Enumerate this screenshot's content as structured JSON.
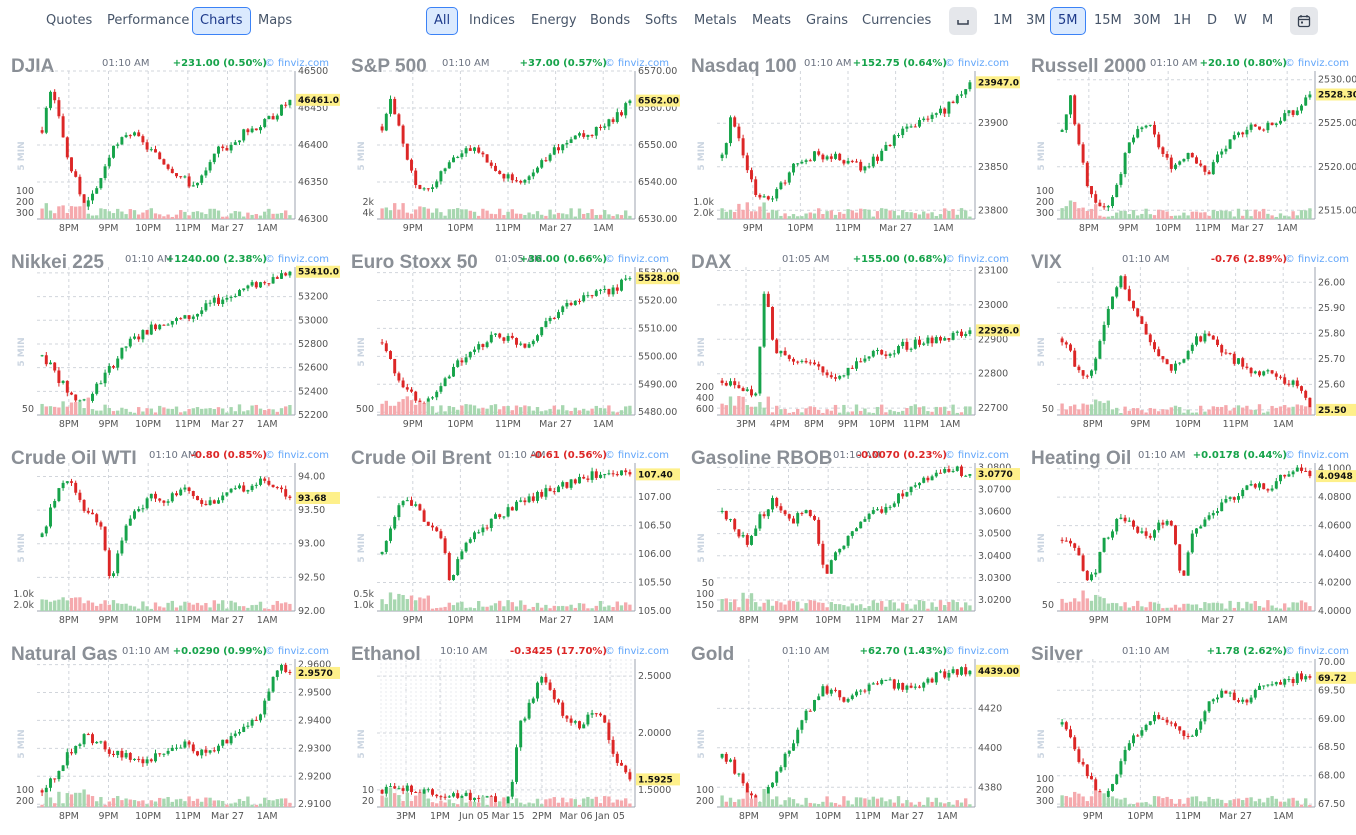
{
  "nav": {
    "left": [
      "Quotes",
      "Performance",
      "Charts",
      "Maps"
    ],
    "left_active": "Charts",
    "categories": [
      "All",
      "Indices",
      "Energy",
      "Bonds",
      "Softs",
      "Metals",
      "Meats",
      "Grains",
      "Currencies"
    ],
    "categories_active": "All",
    "timeframes": [
      "1M",
      "3M",
      "5M",
      "15M",
      "30M",
      "1H",
      "D",
      "W",
      "M"
    ],
    "timeframe_active": "5M",
    "icons": [
      "candle-toggle-icon",
      "calendar-icon"
    ]
  },
  "colors": {
    "up": "#16a34a",
    "down": "#dc2626",
    "volume_up": "#a7d7b0",
    "volume_down": "#f5a9ad",
    "last_bg": "#fef08a",
    "accent": "#3b82f6"
  },
  "source_label": "© finviz.com",
  "interval_label": "5 MIN",
  "charts": [
    {
      "title": "DJIA",
      "time": "01:10 AM",
      "change": "+231.00 (0.50%)",
      "dir": "up",
      "last": "46461.0",
      "y_ticks": [
        "46500",
        "46450",
        "46400",
        "46350",
        "46300"
      ],
      "ymin": 46300,
      "ymax": 46500,
      "vol_ticks": [
        "300",
        "200",
        "100"
      ],
      "x_ticks": [
        "8PM",
        "9PM",
        "10PM",
        "11PM",
        "Mar 27",
        "1AM"
      ],
      "path": [
        46420,
        46470,
        46440,
        46380,
        46350,
        46320,
        46330,
        46360,
        46390,
        46400,
        46420,
        46410,
        46400,
        46390,
        46380,
        46370,
        46360,
        46350,
        46345,
        46360,
        46380,
        46400,
        46395,
        46410,
        46420,
        46425,
        46430,
        46440,
        46450,
        46461
      ]
    },
    {
      "title": "S&P 500",
      "time": "01:10 AM",
      "change": "+37.00 (0.57%)",
      "dir": "up",
      "last": "6562.00",
      "y_ticks": [
        "6570.00",
        "6560.00",
        "6550.00",
        "6540.00",
        "6530.00"
      ],
      "ymin": 6530,
      "ymax": 6570,
      "vol_ticks": [
        "4k",
        "2k"
      ],
      "x_ticks": [
        "9PM",
        "10PM",
        "11PM",
        "Mar 27",
        "1AM"
      ],
      "path": [
        6555,
        6562,
        6555,
        6545,
        6540,
        6537,
        6540,
        6543,
        6546,
        6548,
        6550,
        6548,
        6546,
        6544,
        6542,
        6541,
        6540,
        6542,
        6544,
        6546,
        6548,
        6550,
        6551,
        6552,
        6553,
        6554,
        6555,
        6557,
        6559,
        6562
      ]
    },
    {
      "title": "Nasdaq 100",
      "time": "01:10 AM",
      "change": "+152.75 (0.64%)",
      "dir": "up",
      "last": "23947.0",
      "y_ticks": [
        "23900",
        "23850",
        "23800"
      ],
      "ymin": 23790,
      "ymax": 23960,
      "vol_ticks": [
        "2.0k",
        "1.0k"
      ],
      "x_ticks": [
        "9PM",
        "10PM",
        "11PM",
        "Mar 27",
        "1AM"
      ],
      "path": [
        23860,
        23905,
        23880,
        23840,
        23820,
        23812,
        23818,
        23830,
        23845,
        23855,
        23860,
        23865,
        23860,
        23862,
        23858,
        23855,
        23850,
        23852,
        23860,
        23870,
        23880,
        23890,
        23895,
        23900,
        23905,
        23910,
        23915,
        23925,
        23935,
        23947
      ]
    },
    {
      "title": "Russell 2000",
      "time": "01:10 AM",
      "change": "+20.10 (0.80%)",
      "dir": "up",
      "last": "2528.30",
      "y_ticks": [
        "2530.00",
        "2525.00",
        "2520.00",
        "2515.00"
      ],
      "ymin": 2514,
      "ymax": 2531,
      "vol_ticks": [
        "300",
        "200",
        "100"
      ],
      "x_ticks": [
        "8PM",
        "9PM",
        "10PM",
        "11PM",
        "Mar 27",
        "1AM"
      ],
      "path": [
        2524,
        2528,
        2522,
        2518,
        2516,
        2515,
        2517,
        2520,
        2523,
        2524,
        2525,
        2523,
        2521,
        2520,
        2521,
        2522,
        2520,
        2519,
        2521,
        2522,
        2523,
        2524,
        2525,
        2524,
        2525,
        2525,
        2526,
        2526,
        2527,
        2528.3
      ]
    },
    {
      "title": "Nikkei 225",
      "time": "01:10 AM",
      "change": "+1240.00 (2.38%)",
      "dir": "up",
      "last": "53410.0",
      "y_ticks": [
        "53400",
        "53200",
        "53000",
        "52800",
        "52600",
        "52400",
        "52200"
      ],
      "ymin": 52200,
      "ymax": 53450,
      "vol_ticks": [
        "50"
      ],
      "x_ticks": [
        "8PM",
        "9PM",
        "10PM",
        "11PM",
        "Mar 27",
        "1AM"
      ],
      "path": [
        52700,
        52620,
        52500,
        52400,
        52330,
        52320,
        52400,
        52500,
        52600,
        52700,
        52800,
        52850,
        52900,
        52950,
        52980,
        53000,
        53000,
        53020,
        53050,
        53100,
        53150,
        53180,
        53200,
        53250,
        53280,
        53300,
        53330,
        53360,
        53380,
        53410
      ]
    },
    {
      "title": "Euro Stoxx 50",
      "time": "01:05 AM",
      "change": "+36.00 (0.66%)",
      "dir": "up",
      "last": "5528.00",
      "y_ticks": [
        "5530.00",
        "5520.00",
        "5510.00",
        "5500.00",
        "5490.00",
        "5480.00"
      ],
      "ymin": 5479,
      "ymax": 5532,
      "vol_ticks": [
        "500"
      ],
      "x_ticks": [
        "9PM",
        "10PM",
        "11PM",
        "Mar 27",
        "1AM"
      ],
      "path": [
        5505,
        5498,
        5492,
        5488,
        5484,
        5482,
        5486,
        5490,
        5495,
        5498,
        5500,
        5502,
        5505,
        5508,
        5507,
        5506,
        5505,
        5504,
        5508,
        5512,
        5515,
        5517,
        5519,
        5520,
        5521,
        5522,
        5523,
        5524,
        5526,
        5528
      ]
    },
    {
      "title": "DAX",
      "time": "01:05 AM",
      "change": "+155.00 (0.68%)",
      "dir": "up",
      "last": "22926.0",
      "y_ticks": [
        "23100",
        "23000",
        "22900",
        "22800",
        "22700"
      ],
      "ymin": 22680,
      "ymax": 23110,
      "vol_ticks": [
        "600",
        "400",
        "200"
      ],
      "x_ticks": [
        "3PM",
        "4PM",
        "8PM",
        "9PM",
        "10PM",
        "11PM",
        "1AM"
      ],
      "path": [
        22780,
        22770,
        22760,
        22750,
        22740,
        23060,
        22880,
        22860,
        22850,
        22840,
        22830,
        22820,
        22800,
        22790,
        22800,
        22820,
        22840,
        22850,
        22860,
        22860,
        22870,
        22880,
        22880,
        22890,
        22895,
        22900,
        22905,
        22910,
        22918,
        22926
      ]
    },
    {
      "title": "VIX",
      "time": "01:10 AM",
      "change": "-0.76 (2.89%)",
      "dir": "down",
      "last": "25.50",
      "y_ticks": [
        "26.00",
        "25.90",
        "25.80",
        "25.70",
        "25.60",
        "25.50"
      ],
      "ymin": 25.48,
      "ymax": 26.06,
      "vol_ticks": [
        "50"
      ],
      "x_ticks": [
        "8PM",
        "9PM",
        "10PM",
        "11PM",
        "1AM"
      ],
      "path": [
        25.78,
        25.72,
        25.65,
        25.62,
        25.7,
        25.85,
        25.95,
        26.02,
        25.92,
        25.85,
        25.78,
        25.72,
        25.68,
        25.66,
        25.7,
        25.75,
        25.78,
        25.8,
        25.76,
        25.72,
        25.7,
        25.68,
        25.66,
        25.65,
        25.64,
        25.63,
        25.62,
        25.6,
        25.58,
        25.5
      ]
    },
    {
      "title": "Crude Oil WTI",
      "time": "01:10 AM",
      "change": "-0.80 (0.85%)",
      "dir": "down",
      "last": "93.68",
      "y_ticks": [
        "94.00",
        "93.50",
        "93.00",
        "92.50",
        "92.00"
      ],
      "ymin": 92.0,
      "ymax": 94.2,
      "vol_ticks": [
        "2.0k",
        "1.0k"
      ],
      "x_ticks": [
        "8PM",
        "9PM",
        "10PM",
        "11PM",
        "Mar 27",
        "1AM"
      ],
      "path": [
        93.1,
        93.5,
        93.8,
        94.0,
        93.7,
        93.5,
        93.4,
        93.3,
        92.4,
        93.0,
        93.3,
        93.5,
        93.6,
        93.7,
        93.65,
        93.7,
        93.75,
        93.8,
        93.7,
        93.6,
        93.65,
        93.7,
        93.75,
        93.8,
        93.85,
        93.9,
        93.92,
        93.9,
        93.8,
        93.68
      ]
    },
    {
      "title": "Crude Oil Brent",
      "time": "01:10 AM",
      "change": "-0.61 (0.56%)",
      "dir": "down",
      "last": "107.40",
      "y_ticks": [
        "107.00",
        "106.50",
        "106.00",
        "105.50",
        "105.00"
      ],
      "ymin": 105.0,
      "ymax": 107.6,
      "vol_ticks": [
        "1.0k",
        "0.5k"
      ],
      "x_ticks": [
        "9PM",
        "10PM",
        "11PM",
        "Mar 27",
        "1AM"
      ],
      "path": [
        106.0,
        106.4,
        106.8,
        107.0,
        106.8,
        106.6,
        106.4,
        106.3,
        105.4,
        106.0,
        106.2,
        106.4,
        106.5,
        106.6,
        106.7,
        106.8,
        106.9,
        107.0,
        107.0,
        107.1,
        107.15,
        107.2,
        107.25,
        107.3,
        107.35,
        107.4,
        107.45,
        107.45,
        107.42,
        107.4
      ]
    },
    {
      "title": "Gasoline RBOB",
      "time": "01:10 AM",
      "change": "-0.0070 (0.23%)",
      "dir": "down",
      "last": "3.0770",
      "y_ticks": [
        "3.0800",
        "3.0700",
        "3.0600",
        "3.0500",
        "3.0400",
        "3.0300",
        "3.0200"
      ],
      "ymin": 3.015,
      "ymax": 3.082,
      "vol_ticks": [
        "150",
        "100",
        "50"
      ],
      "x_ticks": [
        "8PM",
        "9PM",
        "10PM",
        "11PM",
        "Mar 27",
        "1AM"
      ],
      "path": [
        3.06,
        3.055,
        3.05,
        3.045,
        3.055,
        3.06,
        3.065,
        3.06,
        3.055,
        3.058,
        3.06,
        3.055,
        3.03,
        3.04,
        3.045,
        3.05,
        3.055,
        3.058,
        3.06,
        3.062,
        3.065,
        3.068,
        3.07,
        3.072,
        3.075,
        3.076,
        3.078,
        3.079,
        3.078,
        3.077
      ]
    },
    {
      "title": "Heating Oil",
      "time": "01:10 AM",
      "change": "+0.0178 (0.44%)",
      "dir": "up",
      "last": "4.0948",
      "y_ticks": [
        "4.1000",
        "4.0800",
        "4.0600",
        "4.0400",
        "4.0200",
        "4.0000"
      ],
      "ymin": 4.0,
      "ymax": 4.104,
      "vol_ticks": [
        "50"
      ],
      "x_ticks": [
        "9PM",
        "10PM",
        "Mar 27",
        "1AM"
      ],
      "path": [
        4.05,
        4.045,
        4.04,
        4.02,
        4.03,
        4.05,
        4.06,
        4.065,
        4.06,
        4.055,
        4.05,
        4.058,
        4.065,
        4.06,
        4.02,
        4.05,
        4.06,
        4.065,
        4.07,
        4.075,
        4.08,
        4.085,
        4.088,
        4.09,
        4.085,
        4.09,
        4.095,
        4.098,
        4.1,
        4.0948
      ]
    },
    {
      "title": "Natural Gas",
      "time": "01:10 AM",
      "change": "+0.0290 (0.99%)",
      "dir": "up",
      "last": "2.9570",
      "y_ticks": [
        "2.9600",
        "2.9500",
        "2.9400",
        "2.9300",
        "2.9200",
        "2.9100"
      ],
      "ymin": 2.909,
      "ymax": 2.962,
      "vol_ticks": [
        "200",
        "100"
      ],
      "x_ticks": [
        "8PM",
        "9PM",
        "10PM",
        "11PM",
        "Mar 27",
        "1AM"
      ],
      "path": [
        2.915,
        2.918,
        2.922,
        2.928,
        2.932,
        2.934,
        2.933,
        2.931,
        2.929,
        2.928,
        2.927,
        2.926,
        2.925,
        2.927,
        2.929,
        2.931,
        2.932,
        2.931,
        2.929,
        2.928,
        2.93,
        2.932,
        2.934,
        2.936,
        2.938,
        2.94,
        2.945,
        2.955,
        2.96,
        2.957
      ]
    },
    {
      "title": "Ethanol",
      "time": "10:10 AM",
      "change": "-0.3425 (17.70%)",
      "dir": "down",
      "last": "1.5925",
      "y_ticks": [
        "2.5000",
        "2.0000",
        "1.5000"
      ],
      "ymin": 1.35,
      "ymax": 2.65,
      "vol_ticks": [
        "20",
        "10"
      ],
      "x_ticks": [
        "3PM",
        "1PM",
        "Jun 05",
        "Mar 15",
        "2PM",
        "Mar 06",
        "Jan 05"
      ],
      "path": [
        1.5,
        1.5,
        1.5,
        1.5,
        1.49,
        1.48,
        1.48,
        1.47,
        1.46,
        1.45,
        1.44,
        1.43,
        1.42,
        1.41,
        1.41,
        1.42,
        2.05,
        2.2,
        2.4,
        2.5,
        2.35,
        2.2,
        2.1,
        2.05,
        2.15,
        2.2,
        2.1,
        1.8,
        1.7,
        1.5925
      ]
    },
    {
      "title": "Gold",
      "time": "01:10 AM",
      "change": "+62.70 (1.43%)",
      "dir": "up",
      "last": "4439.00",
      "y_ticks": [
        "4420",
        "4400",
        "4380"
      ],
      "ymin": 4370,
      "ymax": 4445,
      "vol_ticks": [
        "200",
        "100"
      ],
      "x_ticks": [
        "8PM",
        "9PM",
        "10PM",
        "11PM",
        "Mar 27",
        "1AM"
      ],
      "path": [
        4395,
        4392,
        4385,
        4378,
        4372,
        4376,
        4384,
        4392,
        4400,
        4410,
        4418,
        4426,
        4430,
        4428,
        4426,
        4424,
        4428,
        4430,
        4432,
        4434,
        4432,
        4430,
        4431,
        4432,
        4434,
        4436,
        4437,
        4438,
        4439,
        4439
      ]
    },
    {
      "title": "Silver",
      "time": "01:10 AM",
      "change": "+1.78 (2.62%)",
      "dir": "up",
      "last": "69.72",
      "y_ticks": [
        "70.00",
        "69.50",
        "69.00",
        "68.50",
        "68.00",
        "67.50"
      ],
      "ymin": 67.45,
      "ymax": 70.05,
      "vol_ticks": [
        "300",
        "200",
        "100"
      ],
      "x_ticks": [
        "9PM",
        "10PM",
        "11PM",
        "Mar 27",
        "1AM"
      ],
      "path": [
        68.9,
        68.6,
        68.3,
        68.0,
        67.7,
        67.6,
        67.9,
        68.3,
        68.6,
        68.8,
        69.0,
        69.1,
        69.0,
        68.9,
        68.8,
        68.7,
        68.9,
        69.2,
        69.4,
        69.5,
        69.4,
        69.3,
        69.4,
        69.5,
        69.55,
        69.6,
        69.65,
        69.7,
        69.75,
        69.72
      ]
    }
  ]
}
